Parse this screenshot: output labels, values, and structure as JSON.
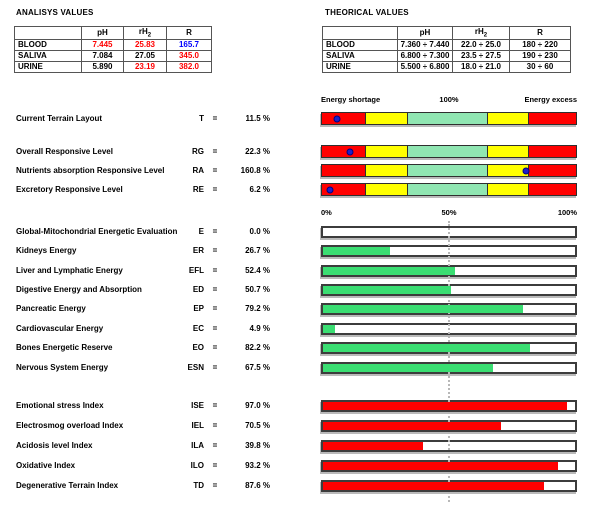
{
  "colors": {
    "red": "#FF0000",
    "blue": "#0000FF",
    "black": "#000000",
    "bar_border": "#2f2f2f",
    "dot_blue": "#1F1FC8"
  },
  "analysis_table": {
    "title": "ANALISYS VALUES",
    "headers": {
      "col0": "",
      "ph": "pH",
      "rh": "rH",
      "rh_sub": "2",
      "r": "R"
    },
    "rows": [
      {
        "label": "BLOOD",
        "cells": [
          {
            "t": "7.445",
            "c": "red"
          },
          {
            "t": "25.83",
            "c": "red"
          },
          {
            "t": "165.7",
            "c": "blue"
          }
        ]
      },
      {
        "label": "SALIVA",
        "cells": [
          {
            "t": "7.084",
            "c": "black"
          },
          {
            "t": "27.05",
            "c": "black"
          },
          {
            "t": "345.0",
            "c": "red"
          }
        ]
      },
      {
        "label": "URINE",
        "cells": [
          {
            "t": "5.890",
            "c": "black"
          },
          {
            "t": "23.19",
            "c": "red"
          },
          {
            "t": "382.0",
            "c": "red"
          }
        ]
      }
    ]
  },
  "theoretical_table": {
    "title": "THEORICAL VALUES",
    "headers": {
      "col0": "",
      "ph": "pH",
      "rh": "rH",
      "rh_sub": "2",
      "r": "R"
    },
    "rows": [
      {
        "label": "BLOOD",
        "cells": [
          {
            "t": "7.360 ÷ 7.440",
            "c": "black"
          },
          {
            "t": "22.0 ÷ 25.0",
            "c": "black"
          },
          {
            "t": "180 ÷ 220",
            "c": "black"
          }
        ]
      },
      {
        "label": "SALIVA",
        "cells": [
          {
            "t": "6.800 ÷ 7.300",
            "c": "black"
          },
          {
            "t": "23.5 ÷ 27.5",
            "c": "black"
          },
          {
            "t": "190 ÷ 230",
            "c": "black"
          }
        ]
      },
      {
        "label": "URINE",
        "cells": [
          {
            "t": "5.500 ÷ 6.800",
            "c": "black"
          },
          {
            "t": "18.0 ÷ 21.0",
            "c": "black"
          },
          {
            "t": "30 ÷ 60",
            "c": "black"
          }
        ]
      }
    ]
  },
  "terrain_section": {
    "legend_left": "Energy shortage",
    "legend_center": "100%",
    "legend_right": "Energy excess",
    "scale_max": 200,
    "eq": "=",
    "segments": [
      {
        "name": "red-low",
        "color": "#FF0000",
        "width_pct": 17.1
      },
      {
        "name": "yellow-low",
        "color": "#FFFF00",
        "width_pct": 16.2
      },
      {
        "name": "green-optimal",
        "color": "#90E6B2",
        "width_pct": 31.8
      },
      {
        "name": "yellow-high",
        "color": "#FFFF00",
        "width_pct": 16.1
      },
      {
        "name": "red-high",
        "color": "#FF0000",
        "width_pct": 18.8
      }
    ],
    "rows": [
      {
        "label": "Current Terrain Layout",
        "code": "T",
        "value": "11.5 %",
        "pct": 11.5
      },
      {
        "label": "Overall Responsive Level",
        "code": "RG",
        "value": "22.3 %",
        "pct": 22.3
      },
      {
        "label": "Nutrients absorption Responsive Level",
        "code": "RA",
        "value": "160.8 %",
        "pct": 160.8
      },
      {
        "label": "Excretory Responsive Level",
        "code": "RE",
        "value": "6.2 %",
        "pct": 6.2
      }
    ]
  },
  "energy_section": {
    "axis": {
      "left": "0%",
      "center": "50%",
      "right": "100%"
    },
    "eq": "=",
    "bar_color": "#3ADE72",
    "rows": [
      {
        "label": "Global-Mitochondrial Energetic Evaluation",
        "code": "E",
        "value": "0.0 %",
        "pct": 0.0
      },
      {
        "label": "Kidneys Energy",
        "code": "ER",
        "value": "26.7 %",
        "pct": 26.7
      },
      {
        "label": "Liver and Lymphatic Energy",
        "code": "EFL",
        "value": "52.4 %",
        "pct": 52.4
      },
      {
        "label": "Digestive Energy and Absorption",
        "code": "ED",
        "value": "50.7 %",
        "pct": 50.7
      },
      {
        "label": "Pancreatic Energy",
        "code": "EP",
        "value": "79.2 %",
        "pct": 79.2
      },
      {
        "label": "Cardiovascular Energy",
        "code": "EC",
        "value": "4.9 %",
        "pct": 4.9
      },
      {
        "label": "Bones Energetic Reserve",
        "code": "EO",
        "value": "82.2 %",
        "pct": 82.2
      },
      {
        "label": "Nervous System Energy",
        "code": "ESN",
        "value": "67.5 %",
        "pct": 67.5
      }
    ]
  },
  "index_section": {
    "eq": "=",
    "bar_color": "#FF0000",
    "rows": [
      {
        "label": "Emotional stress Index",
        "code": "ISE",
        "value": "97.0 %",
        "pct": 97.0
      },
      {
        "label": "Electrosmog overload Index",
        "code": "IEL",
        "value": "70.5 %",
        "pct": 70.5
      },
      {
        "label": "Acidosis level Index",
        "code": "ILA",
        "value": "39.8 %",
        "pct": 39.8
      },
      {
        "label": "Oxidative Index",
        "code": "ILO",
        "value": "93.2 %",
        "pct": 93.2
      },
      {
        "label": "Degenerative Terrain Index",
        "code": "TD",
        "value": "87.6 %",
        "pct": 87.6
      }
    ]
  }
}
